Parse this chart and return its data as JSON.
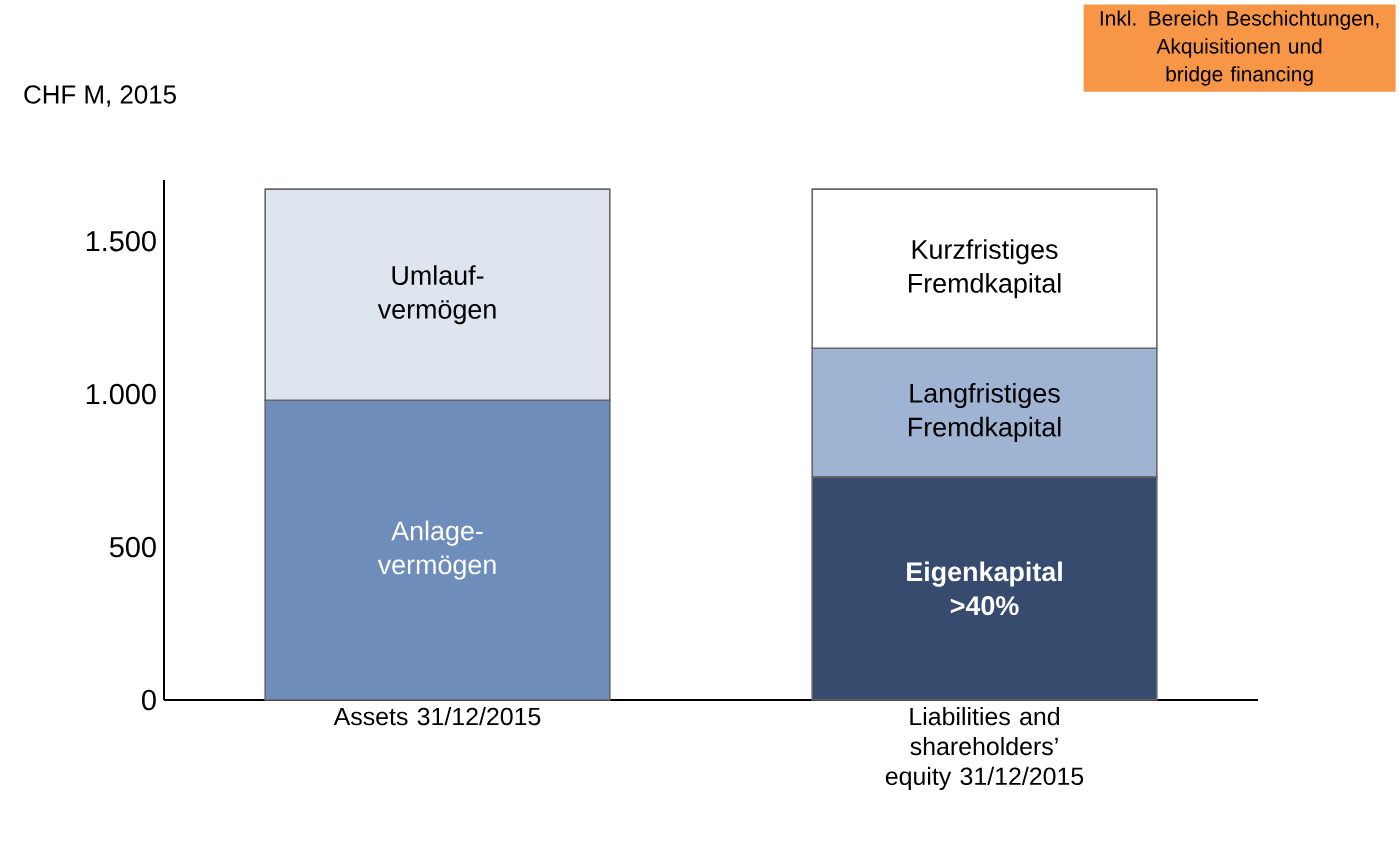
{
  "chart_data": {
    "type": "bar",
    "stacked": true,
    "categories": [
      "Assets 31/12/2015",
      "Liabilities and shareholders’ equity 31/12/2015"
    ],
    "series": [
      {
        "name": "Anlage- vermögen",
        "color": "#6f8dba",
        "values": [
          980,
          null
        ]
      },
      {
        "name": "Umlauf- vermögen",
        "color": "#dfe5ef",
        "values": [
          690,
          null
        ]
      },
      {
        "name": "**Eigenkapital >40%**",
        "color": "#364b6e",
        "values": [
          null,
          730
        ]
      },
      {
        "name": "Langfristiges Fremdkapital",
        "color": "#9fb3d3",
        "values": [
          null,
          420
        ]
      },
      {
        "name": "Kurzfristiges Fremdkapital",
        "color": "#ffffff",
        "values": [
          null,
          520
        ]
      }
    ],
    "ylim": [
      0,
      1700
    ],
    "yticks": [
      0,
      {
        "value": 500,
        "label": "500"
      },
      {
        "value": 1000,
        "label": "1.000"
      },
      {
        "value": 1500,
        "label": "1.500"
      }
    ],
    "legend": false,
    "annotations": [
      "CHF M, 2015",
      "Inkl. Bereich Beschichtungen, Akquisitionen und bridge financing"
    ]
  }
}
